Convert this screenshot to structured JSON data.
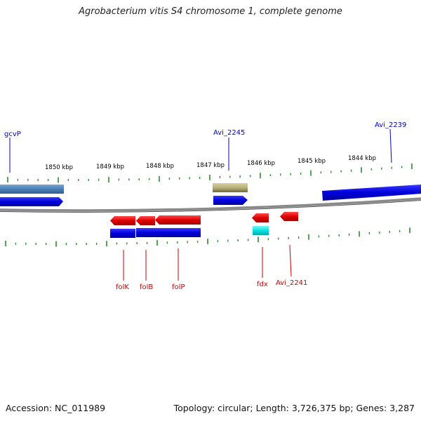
{
  "title": "Agrobacterium vitis S4 chromosome 1, complete genome",
  "footer": {
    "accession": "Accession: NC_011989",
    "summary": "Topology: circular; Length: 3,726,375 bp; Genes: 3,287"
  },
  "scale_labels": [
    "1850 kbp",
    "1849 kbp",
    "1848 kbp",
    "1847 kbp",
    "1846 kbp",
    "1845 kbp",
    "1844 kbp"
  ],
  "gene_labels": {
    "top": [
      "gcvP",
      "Avi_2245",
      "Avi_2239"
    ],
    "bottom": [
      "folK",
      "folB",
      "folP",
      "fdx",
      "Avi_2241"
    ]
  },
  "colors": {
    "backbone": "#8a8a8a",
    "tick": "#2e8b2e",
    "cds_blue": "#0000dd",
    "gene_red": "#e00000",
    "steelblue": "#4a7fb5",
    "khaki": "#b8b07a",
    "cyan": "#00e5e5",
    "label_blue": "#0000cc",
    "label_red": "#cc0000"
  }
}
